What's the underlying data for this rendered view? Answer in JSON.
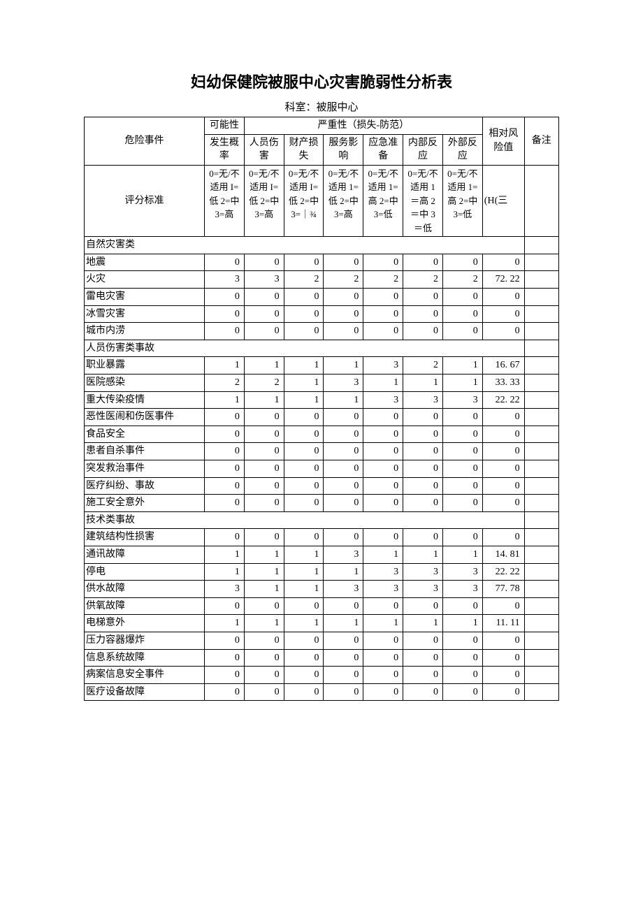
{
  "title": "妇幼保健院被服中心灾害脆弱性分析表",
  "subtitle": "科室：被服中心",
  "header": {
    "event": "危险事件",
    "prob_group": "可能性",
    "severity_group": "严重性（损失-防范）",
    "risk": "相对风险值",
    "note": "备注",
    "cols": {
      "c1": "发生概率",
      "c2": "人员伤害",
      "c3": "财产损失",
      "c4": "服务影响",
      "c5": "应急准备",
      "c6": "内部反应",
      "c7": "外部反应"
    }
  },
  "criteria": {
    "label": "评分标准",
    "c1": "0=无/不适用 I=低 2=中 3=高",
    "c2": "0=无/不适用 I=低 2=中 3=高",
    "c3": "0=无/不适用 I=低 2=中 3=｜¾",
    "c4": "0=无/不适用 1=低 2=中 3=高",
    "c5": "0=无/不适用 1=高 2=中 3=低",
    "c6": "0=无/不适用 1＝高 2＝中 3＝低",
    "c7": "0=无/不适用 1=高 2=中 3=低",
    "risk": "(H(三"
  },
  "sections": [
    {
      "name": "自然灾害类",
      "rows": [
        {
          "name": "地震",
          "v": [
            0,
            0,
            0,
            0,
            0,
            0,
            0
          ],
          "risk": "0"
        },
        {
          "name": "火灾",
          "v": [
            3,
            3,
            2,
            2,
            2,
            2,
            2
          ],
          "risk": "72. 22"
        },
        {
          "name": "雷电灾害",
          "v": [
            0,
            0,
            0,
            0,
            0,
            0,
            0
          ],
          "risk": "0"
        },
        {
          "name": "冰雪灾害",
          "v": [
            0,
            0,
            0,
            0,
            0,
            0,
            0
          ],
          "risk": "0"
        },
        {
          "name": "城市内涝",
          "v": [
            0,
            0,
            0,
            0,
            0,
            0,
            0
          ],
          "risk": "0"
        }
      ]
    },
    {
      "name": "人员伤害类事故",
      "rows": [
        {
          "name": "职业暴露",
          "v": [
            1,
            1,
            1,
            1,
            3,
            2,
            1
          ],
          "risk": "16. 67"
        },
        {
          "name": "医院感染",
          "v": [
            2,
            2,
            1,
            3,
            1,
            1,
            1
          ],
          "risk": "33. 33"
        },
        {
          "name": "重大传染疫情",
          "v": [
            1,
            1,
            1,
            1,
            3,
            3,
            3
          ],
          "risk": "22. 22"
        },
        {
          "name": "恶性医闹和伤医事件",
          "v": [
            0,
            0,
            0,
            0,
            0,
            0,
            0
          ],
          "risk": "0"
        },
        {
          "name": "食品安全",
          "v": [
            0,
            0,
            0,
            0,
            0,
            0,
            0
          ],
          "risk": "0"
        },
        {
          "name": "患者自杀事件",
          "v": [
            0,
            0,
            0,
            0,
            0,
            0,
            0
          ],
          "risk": "0"
        },
        {
          "name": "突发救治事件",
          "v": [
            0,
            0,
            0,
            0,
            0,
            0,
            0
          ],
          "risk": "0"
        },
        {
          "name": "医疗纠纷、事故",
          "v": [
            0,
            0,
            0,
            0,
            0,
            0,
            0
          ],
          "risk": "0"
        },
        {
          "name": "施工安全意外",
          "v": [
            0,
            0,
            0,
            0,
            0,
            0,
            0
          ],
          "risk": "0"
        }
      ]
    },
    {
      "name": "技术类事故",
      "rows": [
        {
          "name": "建筑结构性损害",
          "v": [
            0,
            0,
            0,
            0,
            0,
            0,
            0
          ],
          "risk": "0"
        },
        {
          "name": "通讯故障",
          "v": [
            1,
            1,
            1,
            3,
            1,
            1,
            1
          ],
          "risk": "14. 81"
        },
        {
          "name": "停电",
          "v": [
            1,
            1,
            1,
            1,
            3,
            3,
            3
          ],
          "risk": "22. 22"
        },
        {
          "name": "供水故障",
          "v": [
            3,
            1,
            1,
            3,
            3,
            3,
            3
          ],
          "risk": "77. 78"
        },
        {
          "name": "供氧故障",
          "v": [
            0,
            0,
            0,
            0,
            0,
            0,
            0
          ],
          "risk": "0"
        },
        {
          "name": "电梯意外",
          "v": [
            1,
            1,
            1,
            1,
            1,
            1,
            1
          ],
          "risk": "11. 11"
        },
        {
          "name": "压力容器爆炸",
          "v": [
            0,
            0,
            0,
            0,
            0,
            0,
            0
          ],
          "risk": "0"
        },
        {
          "name": "信息系统故障",
          "v": [
            0,
            0,
            0,
            0,
            0,
            0,
            0
          ],
          "risk": "0"
        },
        {
          "name": "病案信息安全事件",
          "v": [
            0,
            0,
            0,
            0,
            0,
            0,
            0
          ],
          "risk": "0"
        },
        {
          "name": "医疗设备故障",
          "v": [
            0,
            0,
            0,
            0,
            0,
            0,
            0
          ],
          "risk": "0"
        }
      ]
    }
  ],
  "style": {
    "font_family": "SimSun",
    "background_color": "#ffffff",
    "text_color": "#000000",
    "border_color": "#000000",
    "title_fontsize": 22,
    "cell_fontsize": 14
  }
}
